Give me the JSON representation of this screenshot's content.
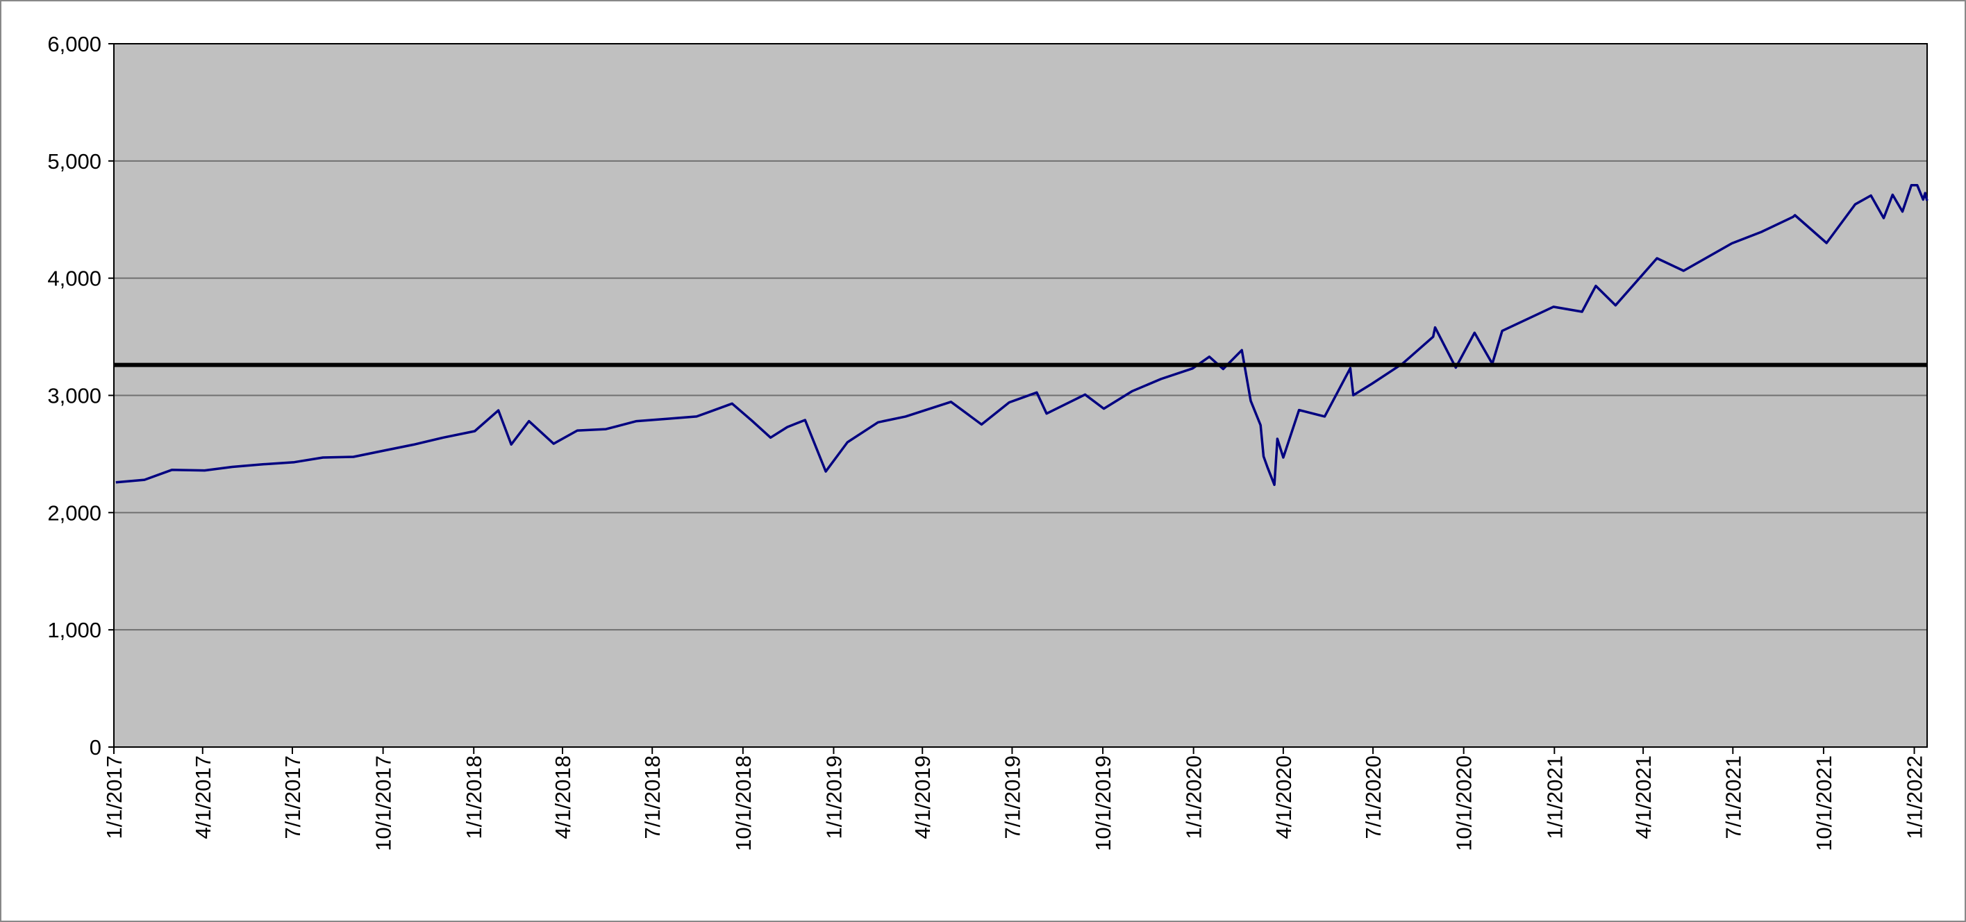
{
  "chart_data": {
    "type": "line",
    "x": [
      "1/3/2017",
      "2/1/2017",
      "3/1/2017",
      "4/3/2017",
      "5/1/2017",
      "6/1/2017",
      "7/3/2017",
      "8/1/2017",
      "9/1/2017",
      "10/2/2017",
      "11/1/2017",
      "12/1/2017",
      "1/2/2018",
      "1/26/2018",
      "2/8/2018",
      "2/26/2018",
      "3/23/2018",
      "4/16/2018",
      "5/15/2018",
      "6/15/2018",
      "7/16/2018",
      "8/15/2018",
      "9/20/2018",
      "10/10/2018",
      "10/29/2018",
      "11/15/2018",
      "12/3/2018",
      "12/24/2018",
      "1/15/2019",
      "2/15/2019",
      "3/15/2019",
      "4/30/2019",
      "5/31/2019",
      "6/28/2019",
      "7/26/2019",
      "8/5/2019",
      "9/13/2019",
      "10/2/2019",
      "10/31/2019",
      "11/29/2019",
      "12/31/2019",
      "1/17/2020",
      "1/31/2020",
      "2/19/2020",
      "2/28/2020",
      "3/9/2020",
      "3/12/2020",
      "3/16/2020",
      "3/23/2020",
      "3/26/2020",
      "4/1/2020",
      "4/17/2020",
      "5/13/2020",
      "6/8/2020",
      "6/11/2020",
      "6/30/2020",
      "7/31/2020",
      "8/31/2020",
      "9/2/2020",
      "9/23/2020",
      "10/12/2020",
      "10/30/2020",
      "11/9/2020",
      "12/31/2020",
      "1/29/2021",
      "2/12/2021",
      "3/4/2021",
      "4/15/2021",
      "5/12/2021",
      "6/30/2021",
      "7/30/2021",
      "8/31/2021",
      "9/2/2021",
      "10/4/2021",
      "11/2/2021",
      "11/18/2021",
      "12/1/2021",
      "12/10/2021",
      "12/20/2021",
      "12/29/2021",
      "1/4/2022",
      "1/10/2022",
      "1/12/2022",
      "1/14/2022"
    ],
    "series": [
      {
        "color": "#000080",
        "values": [
          2258,
          2280,
          2365,
          2360,
          2390,
          2412,
          2430,
          2470,
          2476,
          2529,
          2580,
          2640,
          2695,
          2872,
          2581,
          2780,
          2588,
          2700,
          2712,
          2780,
          2800,
          2820,
          2930,
          2785,
          2640,
          2730,
          2790,
          2351,
          2600,
          2770,
          2820,
          2945,
          2752,
          2940,
          3025,
          2845,
          3007,
          2887,
          3037,
          3140,
          3230,
          3330,
          3225,
          3386,
          2954,
          2746,
          2480,
          2386,
          2237,
          2630,
          2470,
          2875,
          2820,
          3232,
          3002,
          3100,
          3271,
          3500,
          3580,
          3237,
          3534,
          3270,
          3550,
          3756,
          3714,
          3934,
          3768,
          4170,
          4063,
          4297,
          4395,
          4523,
          4537,
          4300,
          4630,
          4705,
          4513,
          4712,
          4568,
          4793,
          4793,
          4670,
          4726,
          4662
        ]
      }
    ],
    "reference_line": {
      "value": 3260,
      "color": "#000000"
    },
    "xlim": [
      "1/1/2017",
      "1/14/2022"
    ],
    "xticks": [
      "1/1/2017",
      "4/1/2017",
      "7/1/2017",
      "10/1/2017",
      "1/1/2018",
      "4/1/2018",
      "7/1/2018",
      "10/1/2018",
      "1/1/2019",
      "4/1/2019",
      "7/1/2019",
      "10/1/2019",
      "1/1/2020",
      "4/1/2020",
      "7/1/2020",
      "10/1/2020",
      "1/1/2021",
      "4/1/2021",
      "7/1/2021",
      "10/1/2021",
      "1/1/2022"
    ],
    "ylim": [
      0,
      6000
    ],
    "yticks": [
      0,
      {
        "value": 1000,
        "label": "1,000"
      },
      {
        "value": 2000,
        "label": "2,000"
      },
      {
        "value": 3000,
        "label": "3,000"
      },
      {
        "value": 4000,
        "label": "4,000"
      },
      {
        "value": 5000,
        "label": "5,000"
      },
      {
        "value": 6000,
        "label": "6,000"
      }
    ],
    "grid": true,
    "background": "#c0c0c0"
  }
}
